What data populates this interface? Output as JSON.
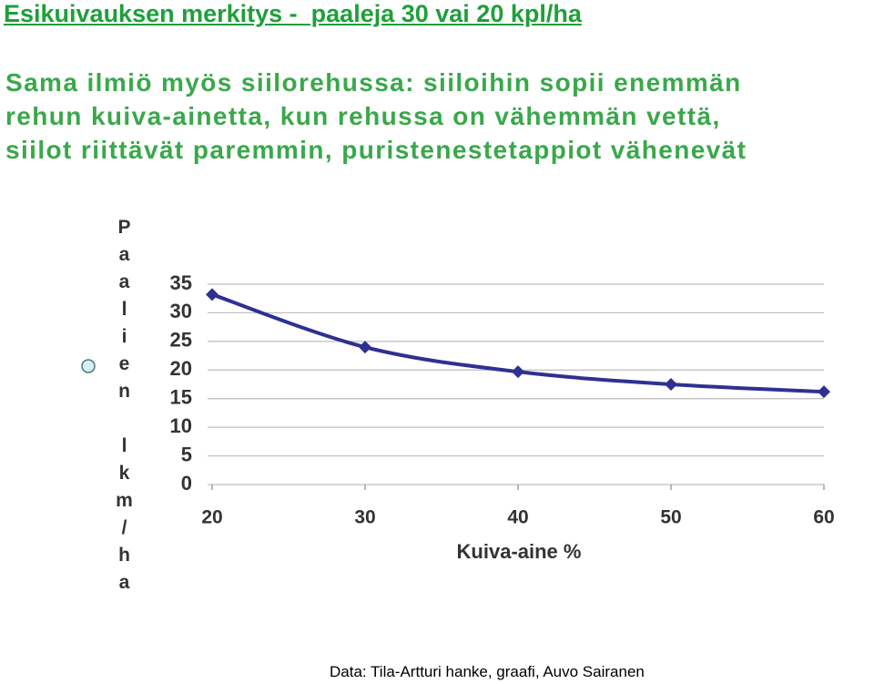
{
  "title": "Esikuivauksen merkitys -  paaleja 30 vai 20 kpl/ha",
  "body_lines": [
    "Sama ilmiö myös siilorehussa: siiloihin sopii enemmän",
    "rehun kuiva-ainetta, kun rehussa on vähemmän vettä,",
    "siilot riittävät paremmin, puristenestetappiot vähenevät"
  ],
  "source": "Data: Tila-Artturi hanke, graafi, Auvo Sairanen",
  "chart_data": {
    "type": "line",
    "x": [
      20,
      30,
      40,
      50,
      60
    ],
    "values": [
      33.2,
      24.0,
      19.7,
      17.5,
      16.2
    ],
    "color": "#2e3192",
    "xlim": [
      20,
      60
    ],
    "xticks": [
      20,
      30,
      40,
      50,
      60
    ],
    "ylim": [
      0,
      35
    ],
    "yticks": [
      0,
      5,
      10,
      15,
      20,
      25,
      30,
      35
    ],
    "xlabel": "Kuiva-aine %",
    "ylabel": "Paalien lkm/ha",
    "grid": true
  }
}
